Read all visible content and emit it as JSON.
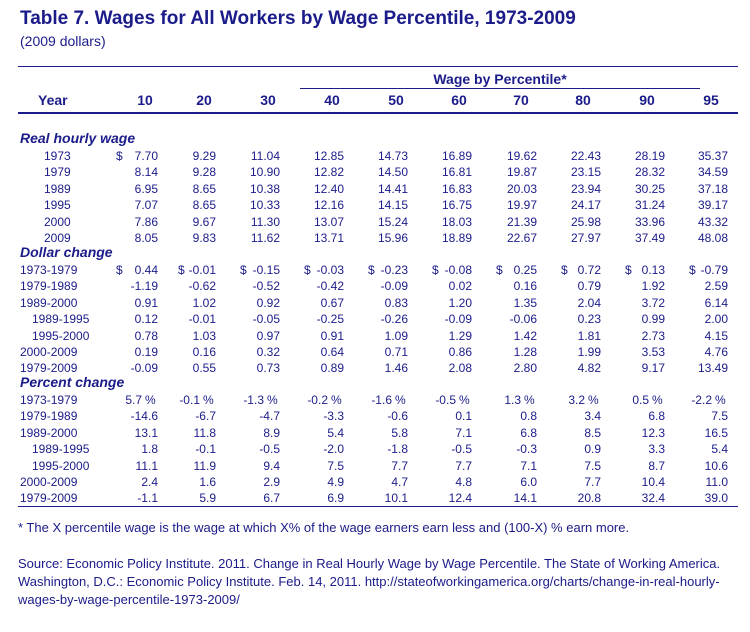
{
  "title": "Table 7.  Wages for All Workers by Wage Percentile, 1973-2009",
  "subtitle": "(2009 dollars)",
  "header": {
    "span_label": "Wage by Percentile*",
    "year_label": "Year",
    "percentiles": [
      "10",
      "20",
      "30",
      "40",
      "50",
      "60",
      "70",
      "80",
      "90",
      "95"
    ]
  },
  "sections": [
    {
      "title": "Real hourly wage",
      "rows": [
        {
          "label": "1973",
          "values": [
            "7.70",
            "9.29",
            "11.04",
            "12.85",
            "14.73",
            "16.89",
            "19.62",
            "22.43",
            "28.19",
            "35.37"
          ]
        },
        {
          "label": "1979",
          "values": [
            "8.14",
            "9.28",
            "10.90",
            "12.82",
            "14.50",
            "16.81",
            "19.87",
            "23.15",
            "28.32",
            "34.59"
          ]
        },
        {
          "label": "1989",
          "values": [
            "6.95",
            "8.65",
            "10.38",
            "12.40",
            "14.41",
            "16.83",
            "20.03",
            "23.94",
            "30.25",
            "37.18"
          ]
        },
        {
          "label": "1995",
          "values": [
            "7.07",
            "8.65",
            "10.33",
            "12.16",
            "14.15",
            "16.75",
            "19.97",
            "24.17",
            "31.24",
            "39.17"
          ]
        },
        {
          "label": "2000",
          "values": [
            "7.86",
            "9.67",
            "11.30",
            "13.07",
            "15.24",
            "18.03",
            "21.39",
            "25.98",
            "33.96",
            "43.32"
          ]
        },
        {
          "label": "2009",
          "values": [
            "8.05",
            "9.83",
            "11.62",
            "13.71",
            "15.96",
            "18.89",
            "22.67",
            "27.97",
            "37.49",
            "48.08"
          ]
        }
      ]
    },
    {
      "title": "Dollar change",
      "rows": [
        {
          "label": "1973-1979",
          "values": [
            "0.44",
            "-0.01",
            "-0.15",
            "-0.03",
            "-0.23",
            "-0.08",
            "0.25",
            "0.72",
            "0.13",
            "-0.79"
          ]
        },
        {
          "label": "1979-1989",
          "values": [
            "-1.19",
            "-0.62",
            "-0.52",
            "-0.42",
            "-0.09",
            "0.02",
            "0.16",
            "0.79",
            "1.92",
            "2.59"
          ]
        },
        {
          "label": "1989-2000",
          "values": [
            "0.91",
            "1.02",
            "0.92",
            "0.67",
            "0.83",
            "1.20",
            "1.35",
            "2.04",
            "3.72",
            "6.14"
          ]
        },
        {
          "label": "1989-1995",
          "values": [
            "0.12",
            "-0.01",
            "-0.05",
            "-0.25",
            "-0.26",
            "-0.09",
            "-0.06",
            "0.23",
            "0.99",
            "2.00"
          ]
        },
        {
          "label": "1995-2000",
          "values": [
            "0.78",
            "1.03",
            "0.97",
            "0.91",
            "1.09",
            "1.29",
            "1.42",
            "1.81",
            "2.73",
            "4.15"
          ]
        },
        {
          "label": "2000-2009",
          "values": [
            "0.19",
            "0.16",
            "0.32",
            "0.64",
            "0.71",
            "0.86",
            "1.28",
            "1.99",
            "3.53",
            "4.76"
          ]
        },
        {
          "label": "1979-2009",
          "values": [
            "-0.09",
            "0.55",
            "0.73",
            "0.89",
            "1.46",
            "2.08",
            "2.80",
            "4.82",
            "9.17",
            "13.49"
          ]
        }
      ]
    },
    {
      "title": "Percent change",
      "rows": [
        {
          "label": "1973-1979",
          "values": [
            "5.7",
            "-0.1",
            "-1.3",
            "-0.2",
            "-1.6",
            "-0.5",
            "1.3",
            "3.2",
            "0.5",
            "-2.2"
          ]
        },
        {
          "label": "1979-1989",
          "values": [
            "-14.6",
            "-6.7",
            "-4.7",
            "-3.3",
            "-0.6",
            "0.1",
            "0.8",
            "3.4",
            "6.8",
            "7.5"
          ]
        },
        {
          "label": "1989-2000",
          "values": [
            "13.1",
            "11.8",
            "8.9",
            "5.4",
            "5.8",
            "7.1",
            "6.8",
            "8.5",
            "12.3",
            "16.5"
          ]
        },
        {
          "label": "1989-1995",
          "values": [
            "1.8",
            "-0.1",
            "-0.5",
            "-2.0",
            "-1.8",
            "-0.5",
            "-0.3",
            "0.9",
            "3.3",
            "5.4"
          ]
        },
        {
          "label": "1995-2000",
          "values": [
            "11.1",
            "11.9",
            "9.4",
            "7.5",
            "7.7",
            "7.7",
            "7.1",
            "7.5",
            "8.7",
            "10.6"
          ]
        },
        {
          "label": "2000-2009",
          "values": [
            "2.4",
            "1.6",
            "2.9",
            "4.9",
            "4.7",
            "4.8",
            "6.0",
            "7.7",
            "10.4",
            "11.0"
          ]
        },
        {
          "label": "1979-2009",
          "values": [
            "-1.1",
            "5.9",
            "6.7",
            "6.9",
            "10.1",
            "12.4",
            "14.1",
            "20.8",
            "32.4",
            "39.0"
          ]
        }
      ]
    }
  ],
  "symbols": {
    "dollar": "$",
    "percent": "%"
  },
  "footnote": "* The X percentile wage is the wage at which X% of the wage earners earn less and (100-X) % earn more.",
  "source": "Source: Economic Policy Institute. 2011. Change in Real Hourly Wage by Wage Percentile. The State of Working America. Washington, D.C.: Economic Policy Institute. Feb. 14, 2011. http://stateofworkingamerica.org/charts/change-in-real-hourly-wages-by-wage-percentile-1973-2009/",
  "colors": {
    "text": "#1b1b8a",
    "background": "#ffffff"
  }
}
